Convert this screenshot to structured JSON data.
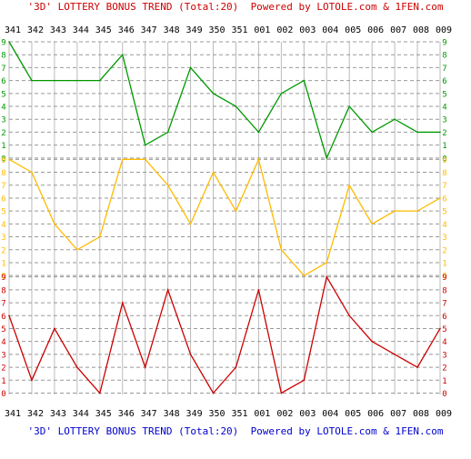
{
  "title_top": {
    "prefix": "'3D' LOTTERY BONUS TREND (Total:20)",
    "suffix": "Powered by LOTOLE.com & 1FEN.com",
    "color": "#cc0000"
  },
  "title_bottom": {
    "prefix": "'3D' LOTTERY BONUS TREND (Total:20)",
    "suffix": "Powered by LOTOLE.com & 1FEN.com",
    "color": "#0000cc"
  },
  "colors": {
    "grid_vertical": "#bbbbbb",
    "grid_horizontal": "#999999",
    "axis_label": "#000000"
  },
  "chart_data": {
    "type": "line",
    "grid": true,
    "categories": [
      "341",
      "342",
      "343",
      "344",
      "345",
      "346",
      "347",
      "348",
      "349",
      "350",
      "351",
      "001",
      "002",
      "003",
      "004",
      "005",
      "006",
      "007",
      "008",
      "009"
    ],
    "ylim": [
      0,
      9
    ],
    "yticks": [
      "0",
      "1",
      "2",
      "3",
      "4",
      "5",
      "6",
      "7",
      "8",
      "9"
    ],
    "series": [
      {
        "color": "#009900",
        "values": [
          9,
          6,
          6,
          6,
          6,
          8,
          1,
          2,
          7,
          5,
          4,
          2,
          5,
          6,
          0,
          4,
          2,
          3,
          2,
          2
        ]
      },
      {
        "color": "#ffbb00",
        "values": [
          9,
          8,
          4,
          2,
          3,
          9,
          9,
          7,
          4,
          8,
          5,
          9,
          2,
          0,
          1,
          7,
          4,
          5,
          5,
          6
        ]
      },
      {
        "color": "#cc0000",
        "values": [
          6,
          1,
          5,
          2,
          0,
          7,
          2,
          8,
          3,
          0,
          2,
          8,
          0,
          1,
          9,
          6,
          4,
          3,
          2,
          5
        ]
      }
    ]
  }
}
